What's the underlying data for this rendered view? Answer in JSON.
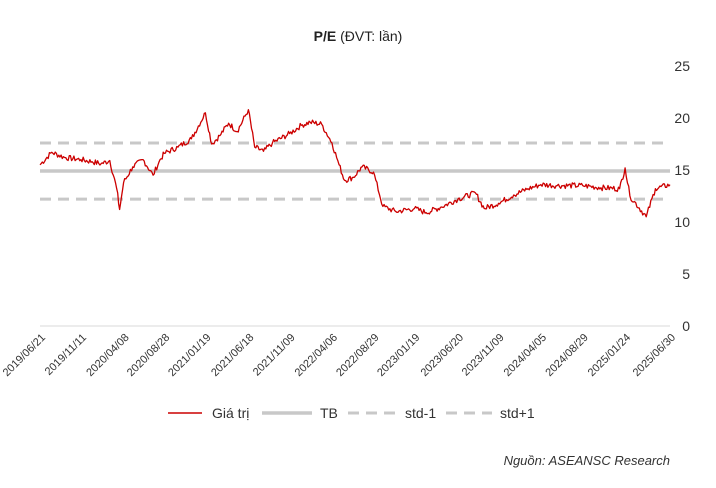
{
  "chart_data": {
    "type": "line",
    "title_main": "P/E",
    "title_unit": "(ĐVT: lần)",
    "x_tick_labels": [
      "2019/06/21",
      "2019/11/11",
      "2020/04/08",
      "2020/08/28",
      "2021/01/19",
      "2021/06/18",
      "2021/11/09",
      "2022/04/06",
      "2022/08/29",
      "2023/01/19",
      "2023/06/20",
      "2023/11/09",
      "2024/04/05",
      "2024/08/29",
      "2025/01/24",
      "2025/06/30"
    ],
    "y_tick_labels": [
      "0",
      "5",
      "10",
      "15",
      "20",
      "25"
    ],
    "ylim": [
      0,
      25
    ],
    "y_axis_side": "right",
    "grid": false,
    "legend_position": "bottom",
    "series": [
      {
        "name": "Giá trị",
        "color": "#cc0000",
        "style": "solid-thin",
        "x": [
          "2019/06/21",
          "2019/08/01",
          "2019/09/15",
          "2019/11/11",
          "2019/12/20",
          "2020/01/20",
          "2020/02/20",
          "2020/03/15",
          "2020/03/25",
          "2020/04/08",
          "2020/05/10",
          "2020/06/15",
          "2020/07/20",
          "2020/08/10",
          "2020/08/28",
          "2020/10/15",
          "2020/12/01",
          "2021/01/19",
          "2021/02/10",
          "2021/03/10",
          "2021/04/10",
          "2021/05/10",
          "2021/06/18",
          "2021/07/10",
          "2021/08/10",
          "2021/09/10",
          "2021/11/09",
          "2021/12/20",
          "2022/01/20",
          "2022/03/01",
          "2022/04/06",
          "2022/05/01",
          "2022/05/20",
          "2022/06/20",
          "2022/07/20",
          "2022/08/29",
          "2022/10/01",
          "2022/11/15",
          "2023/01/19",
          "2023/03/01",
          "2023/04/20",
          "2023/06/20",
          "2023/08/20",
          "2023/09/20",
          "2023/11/09",
          "2024/01/01",
          "2024/02/20",
          "2024/04/05",
          "2024/06/01",
          "2024/08/29",
          "2024/11/01",
          "2025/01/05",
          "2025/01/24",
          "2025/02/10",
          "2025/04/08",
          "2025/05/10",
          "2025/06/30"
        ],
        "values": [
          15.5,
          16.7,
          16.2,
          16.0,
          15.8,
          15.6,
          15.9,
          13.2,
          11.2,
          13.8,
          15.3,
          16.0,
          14.5,
          15.8,
          16.6,
          17.2,
          18.0,
          20.5,
          17.5,
          18.3,
          19.5,
          18.7,
          20.8,
          17.2,
          16.8,
          17.6,
          18.5,
          19.3,
          19.6,
          19.4,
          17.6,
          15.5,
          14.0,
          14.3,
          15.3,
          14.8,
          11.5,
          11.0,
          11.3,
          10.9,
          11.4,
          12.2,
          12.8,
          11.3,
          11.8,
          12.6,
          13.2,
          13.6,
          13.5,
          13.5,
          13.3,
          13.2,
          15.2,
          12.5,
          10.5,
          13.2,
          13.6
        ]
      },
      {
        "name": "TB",
        "color": "#c8c8c8",
        "style": "solid-thick",
        "level": 14.9
      },
      {
        "name": "std-1",
        "color": "#c8c8c8",
        "style": "dashed",
        "level": 12.2
      },
      {
        "name": "std+1",
        "color": "#c8c8c8",
        "style": "dashed",
        "level": 17.6
      }
    ]
  },
  "footer": {
    "source": "Nguồn: ASEANSC Research"
  }
}
